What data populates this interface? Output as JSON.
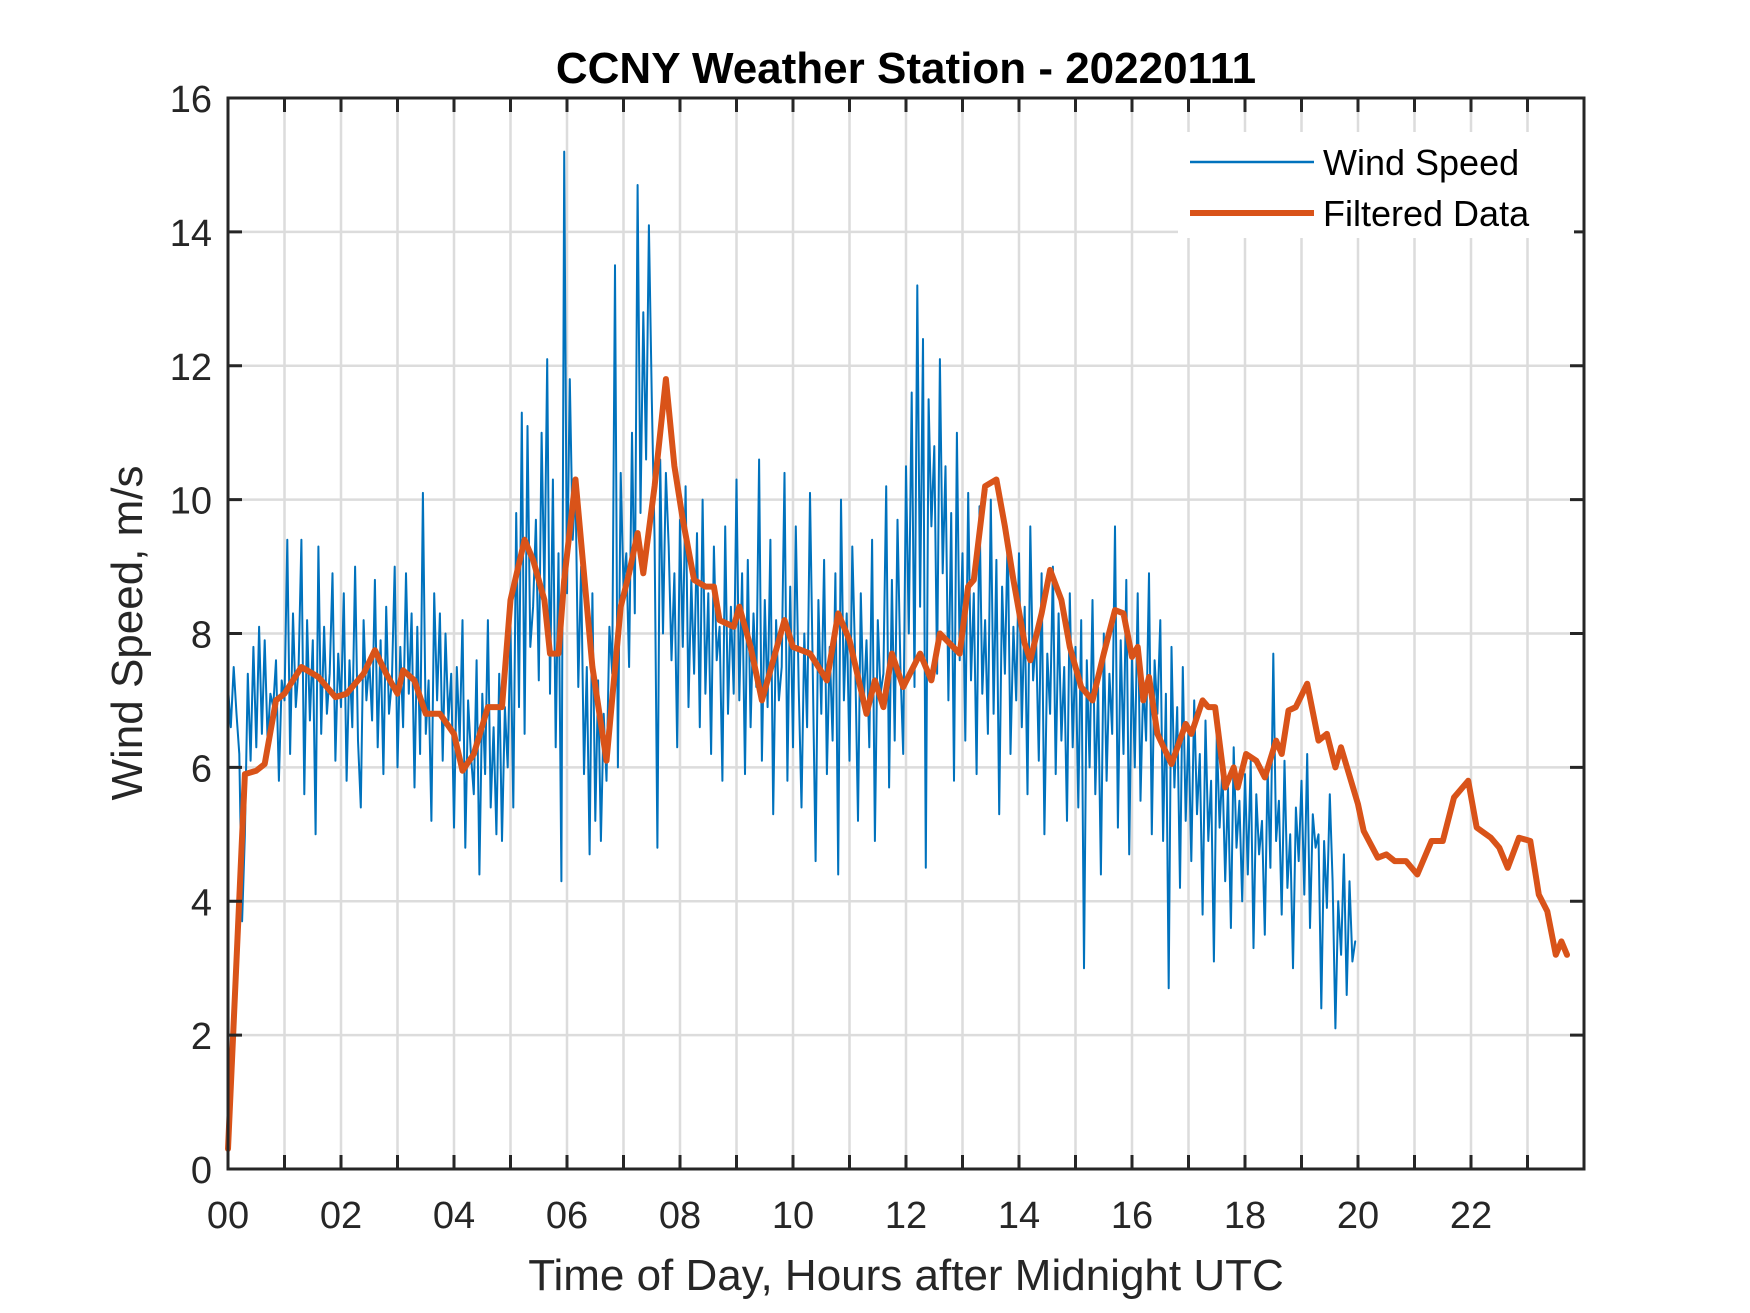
{
  "chart_data": {
    "type": "line",
    "title": "CCNY Weather Station - 20220111",
    "xlabel": "Time of Day, Hours after Midnight UTC",
    "ylabel": "Wind Speed, m/s",
    "xlim": [
      0,
      24
    ],
    "ylim": [
      0,
      16
    ],
    "x_ticks": [
      0,
      2,
      4,
      6,
      8,
      10,
      12,
      14,
      16,
      18,
      20,
      22
    ],
    "x_tick_labels": [
      "00",
      "02",
      "04",
      "06",
      "08",
      "10",
      "12",
      "14",
      "16",
      "18",
      "20",
      "22"
    ],
    "x_minor_ticks": [
      1,
      3,
      5,
      7,
      9,
      11,
      13,
      15,
      17,
      19,
      21,
      23
    ],
    "y_ticks": [
      0,
      2,
      4,
      6,
      8,
      10,
      12,
      14,
      16
    ],
    "y_tick_labels": [
      "0",
      "2",
      "4",
      "6",
      "8",
      "10",
      "12",
      "14",
      "16"
    ],
    "grid": true,
    "legend_position": "top-right",
    "colors": {
      "wind_speed": "#0072BD",
      "filtered": "#D95319"
    },
    "series": [
      {
        "name": "Wind Speed",
        "key": "wind_speed",
        "x_start": 0,
        "x_step": 0.05,
        "values": [
          7.2,
          6.6,
          7.5,
          6.8,
          6.2,
          3.7,
          5.0,
          7.4,
          6.1,
          7.8,
          6.3,
          8.1,
          6.5,
          7.9,
          6.4,
          7.1,
          6.9,
          7.6,
          5.8,
          7.3,
          7.0,
          9.4,
          6.2,
          8.3,
          6.9,
          7.5,
          9.4,
          5.6,
          8.2,
          6.7,
          7.9,
          5.0,
          9.3,
          6.5,
          8.1,
          6.8,
          7.4,
          8.9,
          6.1,
          7.7,
          6.9,
          8.6,
          5.8,
          7.6,
          6.6,
          9.0,
          6.4,
          5.4,
          8.2,
          7.0,
          7.6,
          6.7,
          8.8,
          6.3,
          7.9,
          5.9,
          8.4,
          6.8,
          7.3,
          9.0,
          6.0,
          7.8,
          6.6,
          8.9,
          7.1,
          8.3,
          5.7,
          8.1,
          6.2,
          10.1,
          6.5,
          7.3,
          5.2,
          8.6,
          7.0,
          8.3,
          6.1,
          8.0,
          6.7,
          7.4,
          5.1,
          7.5,
          6.4,
          8.2,
          4.8,
          7.0,
          6.2,
          5.6,
          7.6,
          4.4,
          7.1,
          5.9,
          8.2,
          5.4,
          6.6,
          5.0,
          7.4,
          4.9,
          6.9,
          6.0,
          8.1,
          5.4,
          9.8,
          6.9,
          11.3,
          6.5,
          11.1,
          7.8,
          8.4,
          9.7,
          7.3,
          11.0,
          8.6,
          12.1,
          7.1,
          10.3,
          6.3,
          9.2,
          4.3,
          15.2,
          8.6,
          11.8,
          9.4,
          10.2,
          7.2,
          9.0,
          5.9,
          7.5,
          4.7,
          8.6,
          5.2,
          7.3,
          4.9,
          6.8,
          5.8,
          8.1,
          7.4,
          13.5,
          6.0,
          10.4,
          8.7,
          9.2,
          7.5,
          11.0,
          8.3,
          14.7,
          9.8,
          12.8,
          10.6,
          14.1,
          11.5,
          9.4,
          4.8,
          10.6,
          8.0,
          10.4,
          9.3,
          7.6,
          8.9,
          6.3,
          9.7,
          7.8,
          10.2,
          6.9,
          8.8,
          7.4,
          9.5,
          6.6,
          10.0,
          7.1,
          8.6,
          6.2,
          9.3,
          7.6,
          8.1,
          5.8,
          9.6,
          6.8,
          8.4,
          7.1,
          10.3,
          7.0,
          8.9,
          5.9,
          9.1,
          6.6,
          8.3,
          7.2,
          10.6,
          6.1,
          8.5,
          6.9,
          9.4,
          5.3,
          8.2,
          7.0,
          7.5,
          10.4,
          5.8,
          8.7,
          6.3,
          9.6,
          7.2,
          5.4,
          8.0,
          6.6,
          10.1,
          7.4,
          4.6,
          8.5,
          6.8,
          9.1,
          5.9,
          7.8,
          6.4,
          8.9,
          4.4,
          10.0,
          7.0,
          8.3,
          6.1,
          9.3,
          7.6,
          5.2,
          8.6,
          6.9,
          7.9,
          6.3,
          9.4,
          4.9,
          8.2,
          7.1,
          7.4,
          10.2,
          5.7,
          8.8,
          6.4,
          9.7,
          7.5,
          6.2,
          10.5,
          8.0,
          11.6,
          7.2,
          13.2,
          8.4,
          12.4,
          4.5,
          11.5,
          9.6,
          10.8,
          7.4,
          12.1,
          8.9,
          10.5,
          7.0,
          9.8,
          5.8,
          11.0,
          7.6,
          9.2,
          6.4,
          10.1,
          7.3,
          8.6,
          5.9,
          9.9,
          7.1,
          8.2,
          6.5,
          10.0,
          6.8,
          9.1,
          5.3,
          8.7,
          7.4,
          9.5,
          6.2,
          8.1,
          7.0,
          9.2,
          6.6,
          8.4,
          5.6,
          9.6,
          7.3,
          8.0,
          6.1,
          8.9,
          5.0,
          7.7,
          6.8,
          9.0,
          5.9,
          8.3,
          6.4,
          7.5,
          5.2,
          8.6,
          6.3,
          7.8,
          5.4,
          8.2,
          3.0,
          7.6,
          6.0,
          8.5,
          5.6,
          7.2,
          4.4,
          8.0,
          5.8,
          7.4,
          6.5,
          9.6,
          5.1,
          7.9,
          6.2,
          8.8,
          4.7,
          7.7,
          6.0,
          8.6,
          5.5,
          7.3,
          6.4,
          8.9,
          5.0,
          7.6,
          6.8,
          8.2,
          4.9,
          7.1,
          2.7,
          7.8,
          5.7,
          6.9,
          4.2,
          7.5,
          5.2,
          6.6,
          4.6,
          7.0,
          5.3,
          6.2,
          3.8,
          6.7,
          4.9,
          5.8,
          3.1,
          6.5,
          5.1,
          6.0,
          4.3,
          5.7,
          3.6,
          6.3,
          4.8,
          5.5,
          4.0,
          5.9,
          4.4,
          6.1,
          3.3,
          5.6,
          4.7,
          5.2,
          3.5,
          6.0,
          4.5,
          7.7,
          4.9,
          5.5,
          3.8,
          6.1,
          4.2,
          5.0,
          3.0,
          5.4,
          4.6,
          5.8,
          4.1,
          6.2,
          3.6,
          5.3,
          4.8,
          5.0,
          2.4,
          4.9,
          3.9,
          5.6,
          4.3,
          2.1,
          4.0,
          3.2,
          4.7,
          2.6,
          4.3,
          3.1,
          3.4
        ]
      },
      {
        "name": "Filtered Data",
        "key": "filtered",
        "x": [
          0,
          0.3,
          0.5,
          0.65,
          0.85,
          1.0,
          1.3,
          1.6,
          1.9,
          2.1,
          2.4,
          2.6,
          2.8,
          3.0,
          3.1,
          3.3,
          3.5,
          3.75,
          4.0,
          4.15,
          4.35,
          4.6,
          4.85,
          5.0,
          5.25,
          5.4,
          5.6,
          5.7,
          5.85,
          5.95,
          6.15,
          6.45,
          6.7,
          6.95,
          7.1,
          7.25,
          7.35,
          7.55,
          7.75,
          7.9,
          8.05,
          8.25,
          8.45,
          8.6,
          8.7,
          8.95,
          9.05,
          9.25,
          9.45,
          9.65,
          9.85,
          10.0,
          10.3,
          10.6,
          10.8,
          11.0,
          11.3,
          11.45,
          11.6,
          11.75,
          11.95,
          12.25,
          12.45,
          12.6,
          12.95,
          13.1,
          13.2,
          13.4,
          13.6,
          13.75,
          13.9,
          14.1,
          14.2,
          14.4,
          14.55,
          14.75,
          14.9,
          15.1,
          15.3,
          15.5,
          15.7,
          15.85,
          16.0,
          16.1,
          16.2,
          16.3,
          16.45,
          16.7,
          16.95,
          17.05,
          17.25,
          17.35,
          17.47,
          17.65,
          17.8,
          17.87,
          18.02,
          18.2,
          18.35,
          18.55,
          18.65,
          18.77,
          18.9,
          19.1,
          19.3,
          19.45,
          19.6,
          19.7,
          20.0,
          20.1,
          20.35,
          20.5,
          20.65,
          20.85,
          21.05,
          21.3,
          21.5,
          21.7,
          21.95,
          22.1,
          22.35,
          22.5,
          22.65,
          22.85,
          23.05,
          23.2,
          23.35,
          23.5,
          23.6,
          23.7
        ],
        "values": [
          0.3,
          5.9,
          5.95,
          6.05,
          7.0,
          7.1,
          7.5,
          7.35,
          7.05,
          7.1,
          7.4,
          7.75,
          7.4,
          7.1,
          7.45,
          7.3,
          6.8,
          6.8,
          6.5,
          5.95,
          6.2,
          6.9,
          6.9,
          8.5,
          9.4,
          9.1,
          8.5,
          7.7,
          7.7,
          8.8,
          10.3,
          7.5,
          6.1,
          8.4,
          8.9,
          9.5,
          8.9,
          10.2,
          11.8,
          10.5,
          9.7,
          8.8,
          8.7,
          8.7,
          8.2,
          8.1,
          8.4,
          7.8,
          7.0,
          7.6,
          8.2,
          7.8,
          7.7,
          7.3,
          8.3,
          7.9,
          6.8,
          7.3,
          6.9,
          7.7,
          7.2,
          7.7,
          7.3,
          8.0,
          7.7,
          8.7,
          8.8,
          10.2,
          10.3,
          9.6,
          8.8,
          7.85,
          7.6,
          8.3,
          8.95,
          8.5,
          7.8,
          7.2,
          7.0,
          7.7,
          8.35,
          8.3,
          7.65,
          7.8,
          7.0,
          7.35,
          6.5,
          6.05,
          6.65,
          6.5,
          7.0,
          6.9,
          6.9,
          5.7,
          6.0,
          5.7,
          6.2,
          6.1,
          5.85,
          6.4,
          6.2,
          6.85,
          6.9,
          7.25,
          6.4,
          6.5,
          6.0,
          6.3,
          5.45,
          5.05,
          4.65,
          4.7,
          4.6,
          4.6,
          4.4,
          4.9,
          4.9,
          5.55,
          5.8,
          5.1,
          4.95,
          4.8,
          4.5,
          4.95,
          4.9,
          4.1,
          3.85,
          3.2,
          3.4,
          3.2
        ]
      }
    ],
    "legend": [
      {
        "label": "Wind Speed",
        "key": "wind_speed"
      },
      {
        "label": "Filtered Data",
        "key": "filtered"
      }
    ]
  }
}
